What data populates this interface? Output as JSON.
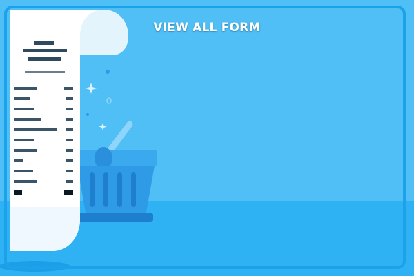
{
  "card": {
    "title": "VIEW ALL FORM",
    "illustration_icon": "receipt-with-shopping-basket-icon"
  },
  "colors": {
    "background": "#4fbff6",
    "floor": "#2fb2f4",
    "border": "#1aa2eb",
    "basket": "#2a8fdc",
    "receipt": "#ffffff",
    "receipt_lines": "#2f4a5c"
  }
}
